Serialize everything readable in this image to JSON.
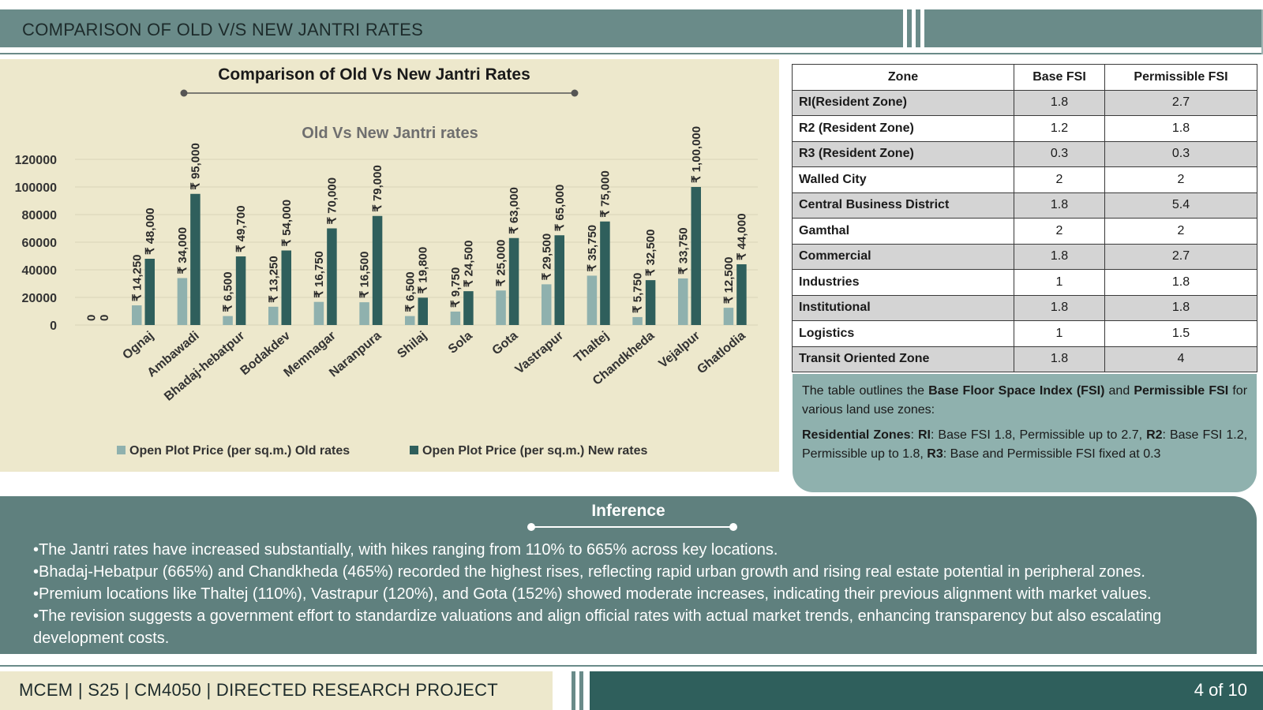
{
  "header": {
    "title": "COMPARISON OF OLD V/S NEW JANTRI RATES"
  },
  "chart_data": {
    "type": "bar",
    "title": "Comparison of Old Vs New Jantri Rates",
    "subtitle": "Old Vs New Jantri rates",
    "xlabel": "",
    "ylabel": "",
    "ylim": [
      0,
      120000
    ],
    "yticks": [
      0,
      20000,
      40000,
      60000,
      80000,
      100000,
      120000
    ],
    "grid": true,
    "legend": "bottom",
    "categories": [
      "",
      "Ognaj",
      "Ambawadi",
      "Bhadaj-hebatpur",
      "Bodakdev",
      "Memnagar",
      "Naranpura",
      "Shilaj",
      "Sola",
      "Gota",
      "Vastrapur",
      "Thaltej",
      "Chandkheda",
      "Vejalpur",
      "Ghatlodia"
    ],
    "series": [
      {
        "name": "Open Plot Price (per sq.m.) Old rates",
        "color": "#8fb1ae",
        "values": [
          0,
          14250,
          34000,
          6500,
          13250,
          16750,
          16500,
          6500,
          9750,
          25000,
          29500,
          35750,
          5750,
          33750,
          12500
        ],
        "labels": [
          "0",
          "₹ 14,250",
          "₹ 34,000",
          "₹ 6,500",
          "₹ 13,250",
          "₹ 16,750",
          "₹ 16,500",
          "₹ 6,500",
          "₹ 9,750",
          "₹ 25,000",
          "₹ 29,500",
          "₹ 35,750",
          "₹ 5,750",
          "₹ 33,750",
          "₹ 12,500"
        ]
      },
      {
        "name": "Open Plot Price (per sq.m.) New rates",
        "color": "#2f5f5c",
        "values": [
          0,
          48000,
          95000,
          49700,
          54000,
          70000,
          79000,
          19800,
          24500,
          63000,
          65000,
          75000,
          32500,
          100000,
          44000
        ],
        "labels": [
          "0",
          "₹ 48,000",
          "₹ 95,000",
          "₹ 49,700",
          "₹ 54,000",
          "₹ 70,000",
          "₹ 79,000",
          "₹ 19,800",
          "₹ 24,500",
          "₹ 63,000",
          "₹ 65,000",
          "₹ 75,000",
          "₹ 32,500",
          "₹ 1,00,000",
          "₹ 44,000"
        ]
      }
    ]
  },
  "fsi_table": {
    "headers": [
      "Zone",
      "Base FSI",
      "Permissible FSI"
    ],
    "rows": [
      [
        "RI(Resident Zone)",
        "1.8",
        "2.7"
      ],
      [
        "R2 (Resident Zone)",
        "1.2",
        "1.8"
      ],
      [
        "R3 (Resident Zone)",
        "0.3",
        "0.3"
      ],
      [
        "Walled City",
        "2",
        "2"
      ],
      [
        "Central Business District",
        "1.8",
        "5.4"
      ],
      [
        "Gamthal",
        "2",
        "2"
      ],
      [
        "Commercial",
        "1.8",
        "2.7"
      ],
      [
        "Industries",
        "1",
        "1.8"
      ],
      [
        "Institutional",
        "1.8",
        "1.8"
      ],
      [
        "Logistics",
        "1",
        "1.5"
      ],
      [
        "Transit Oriented Zone",
        "1.8",
        "4"
      ]
    ]
  },
  "fsi_desc": {
    "p1_a": "The table outlines the ",
    "p1_b": "Base Floor Space Index (FSI)",
    "p1_c": " and ",
    "p1_d": "Permissible FSI",
    "p1_e": " for various land use zones:",
    "p2_a": "Residential Zones",
    "p2_b": ": ",
    "p2_c": "RI",
    "p2_d": ": Base FSI 1.8, Permissible up to 2.7, ",
    "p2_e": "R2",
    "p2_f": ": Base FSI 1.2, Permissible up to 1.8, ",
    "p2_g": "R3",
    "p2_h": ": Base and Permissible FSI fixed at 0.3"
  },
  "inference": {
    "title": "Inference",
    "points": [
      "•The Jantri rates have increased substantially, with hikes ranging from 110% to 665% across key locations.",
      "•Bhadaj-Hebatpur (665%) and Chandkheda (465%) recorded the highest rises, reflecting rapid urban growth and rising real estate potential in peripheral zones.",
      "•Premium locations like Thaltej (110%), Vastrapur (120%), and Gota (152%) showed moderate increases, indicating their previous alignment with market values.",
      "•The revision suggests a government effort to standardize valuations and align official rates with actual market trends, enhancing transparency but also escalating development costs."
    ]
  },
  "footer": {
    "text": "MCEM | S25 | CM4050 | DIRECTED RESEARCH PROJECT",
    "page": "4 of 10"
  }
}
